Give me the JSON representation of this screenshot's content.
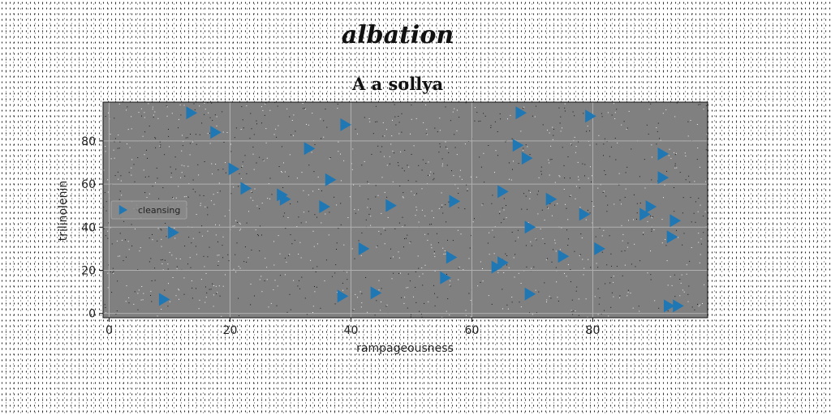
{
  "figure_title": "albation",
  "chart_data": {
    "type": "scatter",
    "title": "A a sollya",
    "xlabel": "rampageousness",
    "ylabel": "trilinolenin",
    "xlim": [
      -1,
      99
    ],
    "ylim": [
      -2,
      98
    ],
    "xticks": [
      0,
      20,
      40,
      60,
      80
    ],
    "yticks": [
      0,
      20,
      40,
      60,
      80
    ],
    "grid": true,
    "legend_position": "center-left",
    "marker": "triangle-right",
    "series": [
      {
        "name": "cleansing",
        "color": "#1f77b4",
        "x": [
          13.5,
          17.5,
          9,
          10.5,
          20.5,
          22.5,
          28.5,
          29,
          33,
          35.5,
          36.5,
          39,
          38.5,
          42,
          44,
          46.5,
          55.5,
          56.5,
          57,
          64,
          65,
          65,
          67.5,
          68,
          69,
          69.5,
          69.5,
          73,
          75,
          78.5,
          79.5,
          81,
          88.5,
          89.5,
          91.5,
          91.5,
          93,
          93.5,
          94,
          92.5
        ],
        "y": [
          93,
          84,
          6.5,
          37.5,
          67,
          58,
          55,
          53,
          76.5,
          49.5,
          62,
          87.5,
          8,
          30,
          9.5,
          50,
          16.5,
          26,
          52,
          21.5,
          23.5,
          56.5,
          78,
          93,
          72,
          40,
          9,
          53,
          26.5,
          46,
          91.5,
          30,
          46,
          49.5,
          74,
          63,
          35.5,
          43,
          3.5,
          3.5
        ]
      }
    ]
  }
}
